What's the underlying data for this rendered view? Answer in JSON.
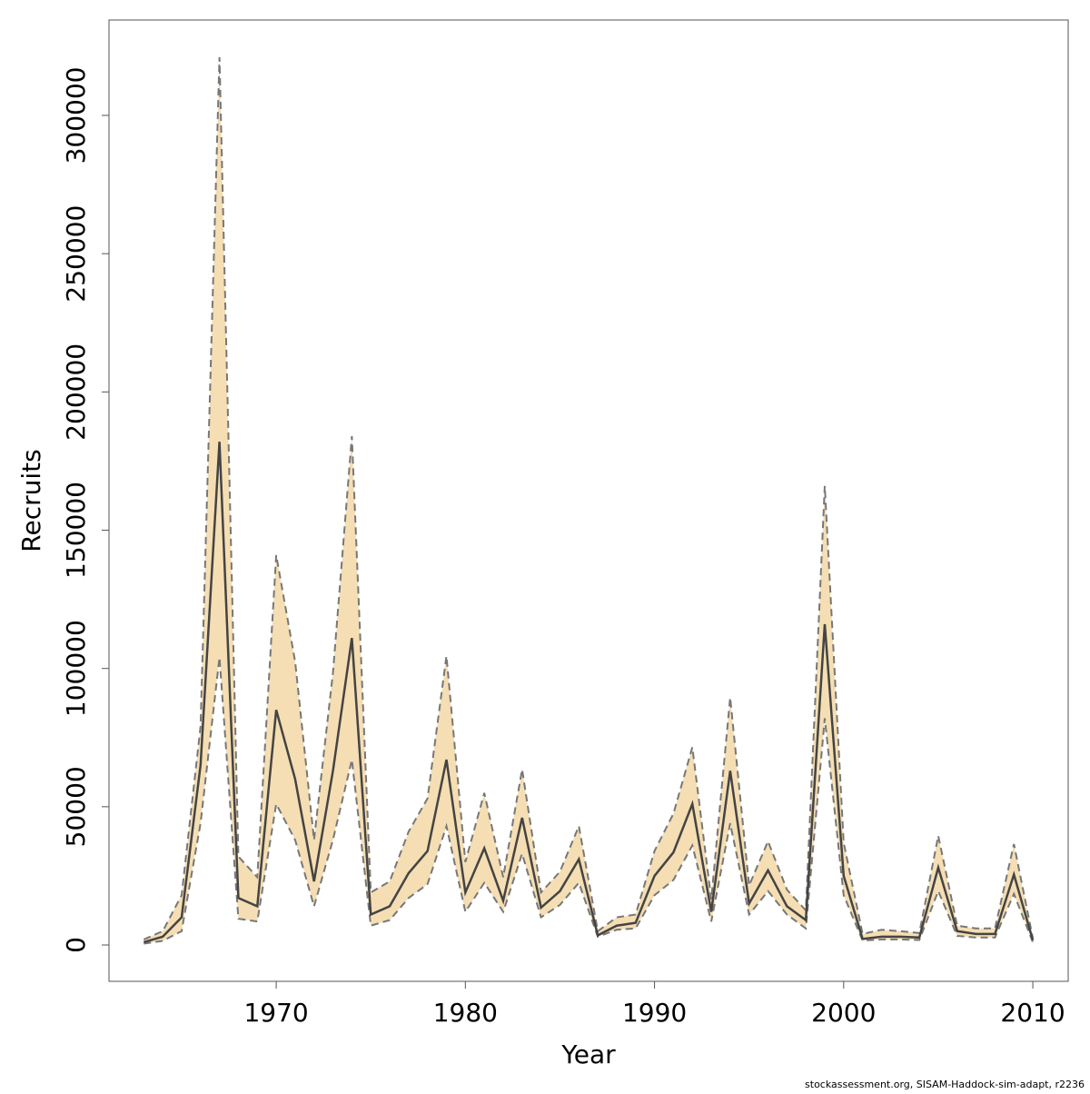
{
  "chart_data": {
    "type": "line_band",
    "x_label": "Year",
    "y_label": "Recruits",
    "caption": "stockassessment.org, SISAM-Haddock-sim-adapt, r2236",
    "x": [
      1963,
      1964,
      1965,
      1966,
      1967,
      1968,
      1969,
      1970,
      1971,
      1972,
      1973,
      1974,
      1975,
      1976,
      1977,
      1978,
      1979,
      1980,
      1981,
      1982,
      1983,
      1984,
      1985,
      1986,
      1987,
      1988,
      1989,
      1990,
      1991,
      1992,
      1993,
      1994,
      1995,
      1996,
      1997,
      1998,
      1999,
      2000,
      2001,
      2002,
      2003,
      2004,
      2005,
      2006,
      2007,
      2008,
      2009,
      2010
    ],
    "values": [
      1000,
      3000,
      10000,
      65000,
      182000,
      17000,
      14000,
      85000,
      60000,
      23000,
      63000,
      111000,
      11000,
      14000,
      26000,
      34000,
      67000,
      19000,
      35000,
      16000,
      46000,
      13500,
      19500,
      31000,
      3500,
      7000,
      8000,
      25000,
      33500,
      51000,
      12000,
      63000,
      15000,
      27000,
      14000,
      9000,
      116000,
      25000,
      2200,
      3000,
      3000,
      2700,
      28000,
      5000,
      4000,
      4000,
      25500,
      1700
    ],
    "lower": [
      500,
      1500,
      5000,
      44000,
      104000,
      9500,
      8500,
      51000,
      38000,
      14000,
      38000,
      67000,
      7000,
      9000,
      17000,
      22000,
      43000,
      12000,
      22500,
      12000,
      33000,
      10000,
      14500,
      22500,
      3000,
      5500,
      6000,
      18000,
      23500,
      36000,
      8500,
      44000,
      11000,
      19500,
      11000,
      6000,
      82000,
      18000,
      1600,
      2000,
      2000,
      1800,
      19500,
      3300,
      2700,
      2700,
      18500,
      1000
    ],
    "upper": [
      2000,
      5000,
      18000,
      79000,
      321000,
      32000,
      24500,
      141000,
      102500,
      38000,
      98500,
      184000,
      19000,
      23000,
      41000,
      53000,
      104500,
      30000,
      55000,
      24500,
      63500,
      19000,
      26500,
      43000,
      5000,
      10000,
      11000,
      34000,
      47500,
      71500,
      16500,
      89500,
      21500,
      37500,
      20000,
      12500,
      166000,
      37000,
      4000,
      5500,
      5000,
      4300,
      39500,
      7000,
      6000,
      6000,
      36500,
      2500
    ],
    "color": "#444444",
    "band_color": "#f5deb3",
    "bound_color": "#777777",
    "xlim": [
      1961.16,
      2011.87
    ],
    "xticks": [
      1970,
      1980,
      1990,
      2000,
      2010
    ],
    "ylim": [
      -13140,
      334500
    ],
    "yticks": [
      0,
      50000,
      100000,
      150000,
      200000,
      250000,
      300000
    ]
  }
}
